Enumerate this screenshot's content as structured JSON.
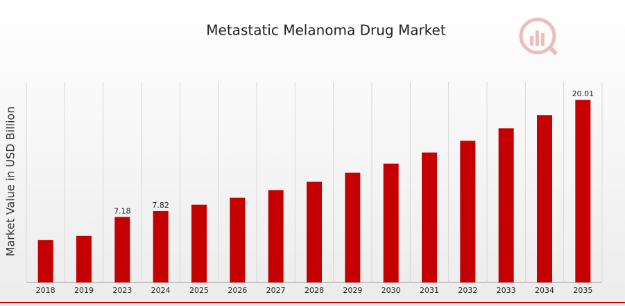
{
  "chart_data": {
    "type": "bar",
    "title": "Metastatic Melanoma Drug Market",
    "y_label": "Market Value in USD Billion",
    "categories": [
      "2018",
      "2019",
      "2023",
      "2024",
      "2025",
      "2026",
      "2027",
      "2028",
      "2029",
      "2030",
      "2031",
      "2032",
      "2033",
      "2034",
      "2035"
    ],
    "values": [
      4.64,
      5.1,
      7.18,
      7.82,
      8.52,
      9.28,
      10.12,
      11.03,
      12.02,
      13.01,
      14.23,
      15.52,
      16.89,
      18.34,
      20.01
    ],
    "value_labels": [
      null,
      null,
      "7.18",
      "7.82",
      null,
      null,
      null,
      null,
      null,
      null,
      null,
      null,
      null,
      null,
      "20.01"
    ],
    "color": "#c40000",
    "ylim": [
      0,
      22
    ],
    "grid": true
  }
}
